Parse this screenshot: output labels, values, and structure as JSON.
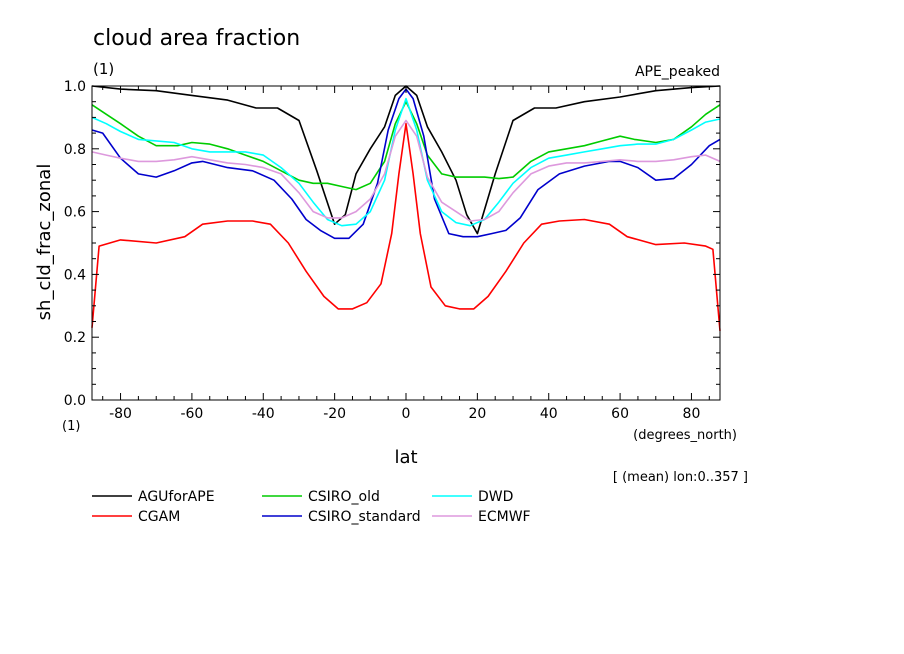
{
  "chart_data": {
    "type": "line",
    "title": "cloud area fraction",
    "unit_top": "(1)",
    "unit_bottom": "(1)",
    "run_label": "APE_peaked",
    "ylabel": "sh_cld_frac_zonal",
    "xlabel": "lat",
    "xunit": "(degrees_north)",
    "note": "[ (mean) lon:0..357 ]",
    "xlim": [
      -88,
      88
    ],
    "ylim": [
      0,
      1
    ],
    "xticks": [
      -80,
      -60,
      -40,
      -20,
      0,
      20,
      40,
      60,
      80
    ],
    "xtick_labels": [
      "-80",
      "-60",
      "-40",
      "-20",
      "0",
      "20",
      "40",
      "60",
      "80"
    ],
    "yticks": [
      0,
      0.2,
      0.4,
      0.6,
      0.8,
      1.0
    ],
    "ytick_labels": [
      "0.0",
      "0.2",
      "0.4",
      "0.6",
      "0.8",
      "1.0"
    ],
    "series": [
      {
        "name": "AGUforAPE",
        "color": "#000000",
        "x": [
          -88,
          -80,
          -70,
          -60,
          -50,
          -42,
          -36,
          -30,
          -25,
          -20,
          -17,
          -14,
          -10,
          -6,
          -3,
          0,
          3,
          6,
          10,
          14,
          17,
          20,
          25,
          30,
          36,
          42,
          50,
          60,
          70,
          80,
          88
        ],
        "y": [
          1.0,
          0.99,
          0.985,
          0.97,
          0.955,
          0.93,
          0.93,
          0.89,
          0.73,
          0.56,
          0.59,
          0.72,
          0.8,
          0.87,
          0.97,
          1.0,
          0.97,
          0.87,
          0.79,
          0.7,
          0.59,
          0.53,
          0.72,
          0.89,
          0.93,
          0.93,
          0.95,
          0.965,
          0.985,
          0.995,
          1.0
        ]
      },
      {
        "name": "CGAM",
        "color": "#ff0000",
        "x": [
          -88,
          -86,
          -80,
          -70,
          -62,
          -57,
          -50,
          -43,
          -38,
          -33,
          -28,
          -23,
          -19,
          -15,
          -11,
          -7,
          -4,
          -2,
          0,
          2,
          4,
          7,
          11,
          15,
          19,
          23,
          28,
          33,
          38,
          43,
          50,
          57,
          62,
          70,
          78,
          84,
          86,
          88
        ],
        "y": [
          0.23,
          0.49,
          0.51,
          0.5,
          0.52,
          0.56,
          0.57,
          0.57,
          0.56,
          0.5,
          0.41,
          0.33,
          0.29,
          0.29,
          0.31,
          0.37,
          0.53,
          0.72,
          0.88,
          0.72,
          0.53,
          0.36,
          0.3,
          0.29,
          0.29,
          0.33,
          0.41,
          0.5,
          0.56,
          0.57,
          0.575,
          0.56,
          0.52,
          0.495,
          0.5,
          0.49,
          0.48,
          0.22
        ]
      },
      {
        "name": "CSIRO_old",
        "color": "#00cc00",
        "x": [
          -88,
          -84,
          -80,
          -75,
          -70,
          -64,
          -60,
          -55,
          -50,
          -45,
          -40,
          -35,
          -30,
          -26,
          -22,
          -18,
          -14,
          -10,
          -6,
          -3,
          0,
          3,
          6,
          10,
          14,
          18,
          22,
          26,
          30,
          35,
          40,
          45,
          50,
          55,
          60,
          64,
          70,
          75,
          80,
          84,
          88
        ],
        "y": [
          0.94,
          0.91,
          0.88,
          0.84,
          0.81,
          0.81,
          0.82,
          0.815,
          0.8,
          0.78,
          0.76,
          0.73,
          0.7,
          0.69,
          0.69,
          0.68,
          0.67,
          0.69,
          0.76,
          0.88,
          0.95,
          0.88,
          0.78,
          0.72,
          0.71,
          0.71,
          0.71,
          0.705,
          0.71,
          0.76,
          0.79,
          0.8,
          0.81,
          0.825,
          0.84,
          0.83,
          0.82,
          0.83,
          0.87,
          0.91,
          0.94
        ]
      },
      {
        "name": "CSIRO_standard",
        "color": "#0000cc",
        "x": [
          -88,
          -85,
          -80,
          -75,
          -70,
          -65,
          -60,
          -57,
          -50,
          -43,
          -37,
          -32,
          -28,
          -24,
          -20,
          -16,
          -12,
          -8,
          -5,
          -2,
          0,
          2,
          5,
          8,
          12,
          16,
          20,
          24,
          28,
          32,
          37,
          43,
          50,
          57,
          60,
          65,
          70,
          75,
          80,
          85,
          88
        ],
        "y": [
          0.86,
          0.85,
          0.77,
          0.72,
          0.71,
          0.73,
          0.755,
          0.76,
          0.74,
          0.73,
          0.7,
          0.64,
          0.575,
          0.54,
          0.515,
          0.515,
          0.56,
          0.69,
          0.86,
          0.96,
          0.99,
          0.96,
          0.84,
          0.64,
          0.53,
          0.52,
          0.52,
          0.53,
          0.54,
          0.58,
          0.67,
          0.72,
          0.745,
          0.76,
          0.76,
          0.74,
          0.7,
          0.705,
          0.75,
          0.81,
          0.83
        ]
      },
      {
        "name": "DWD",
        "color": "#00ffff",
        "x": [
          -88,
          -84,
          -80,
          -75,
          -70,
          -65,
          -60,
          -55,
          -50,
          -45,
          -40,
          -35,
          -30,
          -26,
          -22,
          -18,
          -14,
          -10,
          -6,
          -3,
          0,
          3,
          6,
          10,
          14,
          18,
          22,
          26,
          30,
          35,
          40,
          45,
          50,
          55,
          60,
          65,
          70,
          75,
          80,
          84,
          88
        ],
        "y": [
          0.9,
          0.88,
          0.855,
          0.83,
          0.825,
          0.82,
          0.8,
          0.79,
          0.79,
          0.79,
          0.78,
          0.74,
          0.69,
          0.63,
          0.575,
          0.555,
          0.56,
          0.6,
          0.7,
          0.86,
          0.96,
          0.86,
          0.7,
          0.6,
          0.565,
          0.555,
          0.575,
          0.63,
          0.69,
          0.74,
          0.77,
          0.78,
          0.79,
          0.8,
          0.81,
          0.815,
          0.815,
          0.83,
          0.86,
          0.885,
          0.895
        ]
      },
      {
        "name": "ECMWF",
        "color": "#dd99dd",
        "x": [
          -88,
          -84,
          -80,
          -75,
          -70,
          -65,
          -60,
          -55,
          -50,
          -45,
          -40,
          -35,
          -30,
          -26,
          -22,
          -18,
          -14,
          -10,
          -6,
          -3,
          0,
          3,
          6,
          10,
          14,
          18,
          22,
          26,
          30,
          35,
          40,
          45,
          50,
          55,
          60,
          65,
          70,
          75,
          80,
          84,
          88
        ],
        "y": [
          0.79,
          0.78,
          0.77,
          0.76,
          0.76,
          0.765,
          0.775,
          0.765,
          0.755,
          0.75,
          0.74,
          0.72,
          0.66,
          0.6,
          0.58,
          0.58,
          0.6,
          0.64,
          0.72,
          0.84,
          0.89,
          0.84,
          0.71,
          0.63,
          0.6,
          0.57,
          0.575,
          0.6,
          0.66,
          0.72,
          0.745,
          0.755,
          0.755,
          0.76,
          0.765,
          0.76,
          0.76,
          0.765,
          0.775,
          0.78,
          0.76
        ]
      }
    ]
  }
}
